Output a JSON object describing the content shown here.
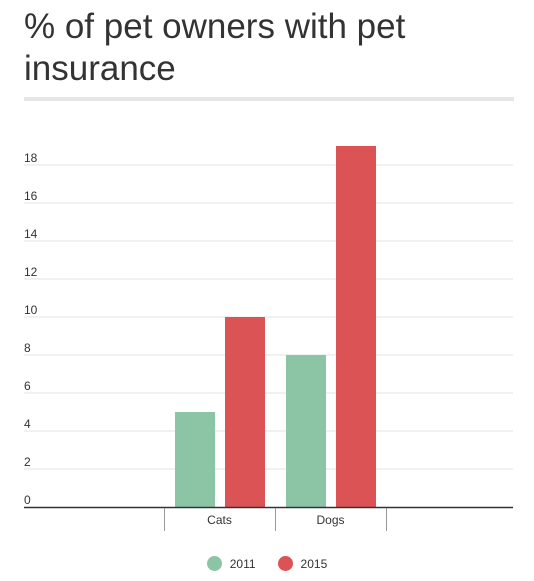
{
  "title": "% of pet owners with pet insurance",
  "chart_data": {
    "type": "bar",
    "categories": [
      "Cats",
      "Dogs"
    ],
    "series": [
      {
        "name": "2011",
        "values": [
          5,
          8
        ],
        "color": "#8cc4a6"
      },
      {
        "name": "2015",
        "values": [
          10,
          19
        ],
        "color": "#dc5356"
      }
    ],
    "title": "% of pet owners with pet insurance",
    "xlabel": "",
    "ylabel": "",
    "ylim": [
      0,
      19
    ],
    "yticks": [
      0,
      2,
      4,
      6,
      8,
      10,
      12,
      14,
      16,
      18
    ],
    "grid": true,
    "legend_position": "bottom"
  }
}
